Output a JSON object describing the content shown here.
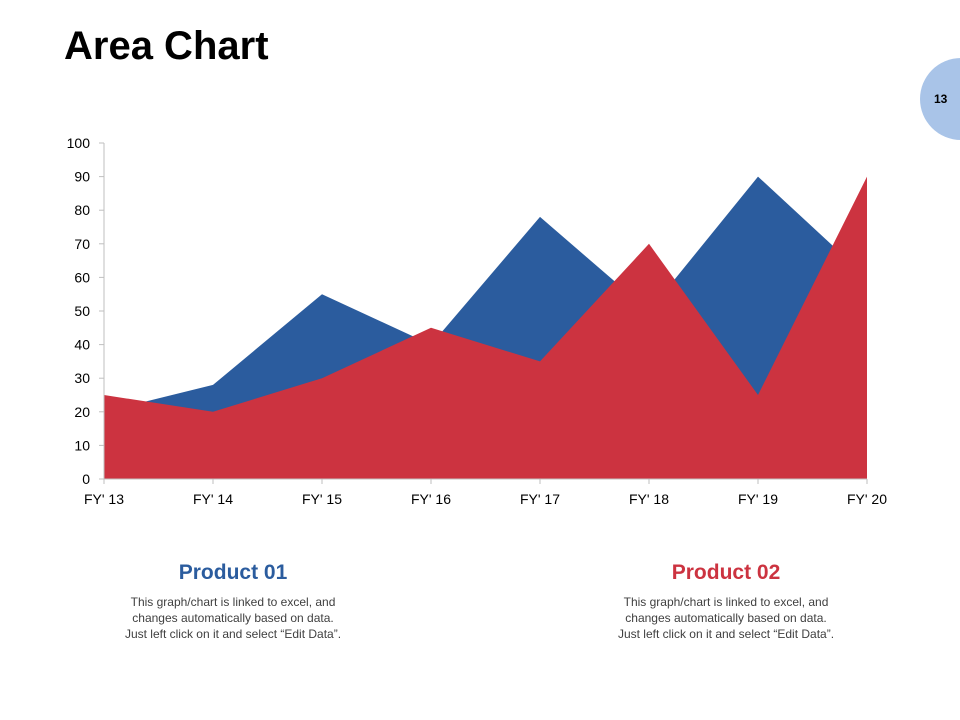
{
  "slide": {
    "title": "Area Chart",
    "page_number": "13"
  },
  "colors": {
    "product01": "#2b5c9e",
    "product02": "#cc3340",
    "page_circle": "#a9c4e8"
  },
  "chart_data": {
    "type": "area",
    "categories": [
      "FY' 13",
      "FY' 14",
      "FY' 15",
      "FY' 16",
      "FY' 17",
      "FY' 18",
      "FY' 19",
      "FY' 20"
    ],
    "series": [
      {
        "name": "Product 01",
        "values": [
          20,
          28,
          55,
          40,
          78,
          50,
          90,
          60
        ]
      },
      {
        "name": "Product 02",
        "values": [
          25,
          20,
          30,
          45,
          35,
          70,
          25,
          90
        ]
      }
    ],
    "ylim": [
      0,
      100
    ],
    "yticks": [
      "0",
      "10",
      "20",
      "30",
      "40",
      "50",
      "60",
      "70",
      "80",
      "90",
      "100"
    ],
    "grid": false
  },
  "products": [
    {
      "title": "Product 01",
      "desc_lines": [
        "This graph/chart is linked to excel, and",
        "changes automatically based on data.",
        "Just left click on it and select “Edit Data”."
      ]
    },
    {
      "title": "Product 02",
      "desc_lines": [
        "This graph/chart is linked to excel, and",
        "changes automatically based on data.",
        "Just left click on it and select “Edit Data”."
      ]
    }
  ]
}
